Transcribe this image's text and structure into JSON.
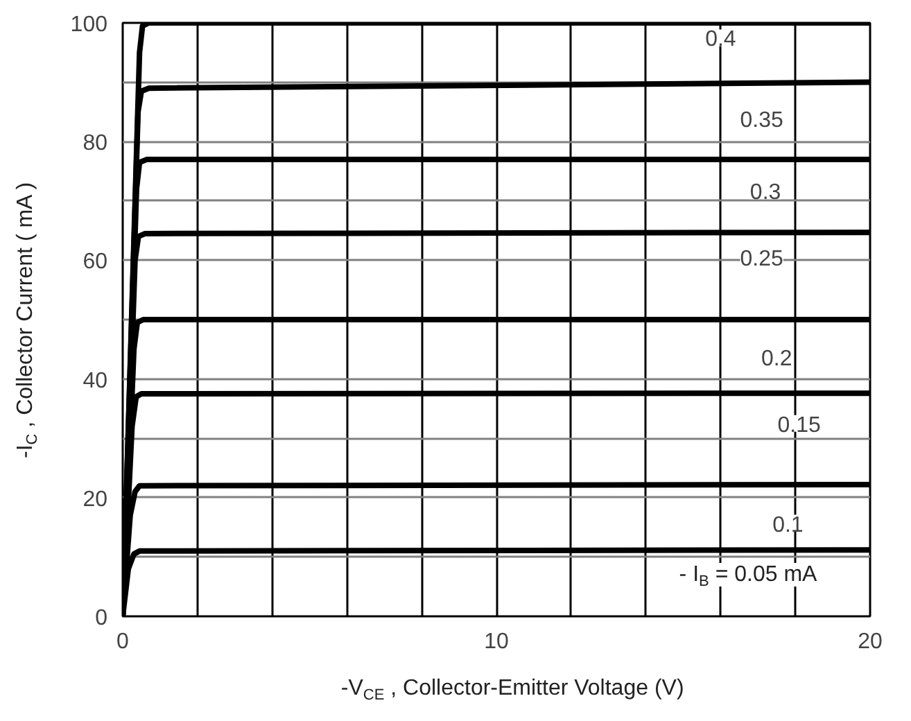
{
  "chart_data": {
    "type": "line",
    "xlabel": "-V$_{CE}$ , Collector-Emitter Voltage (V)",
    "ylabel": "-I$_{C}$ , Collector Current ( mA )",
    "xlim": [
      0,
      20
    ],
    "ylim": [
      0,
      100
    ],
    "xticks": [
      0,
      {
        "value": 2,
        "label": null
      },
      {
        "value": 4,
        "label": null
      },
      {
        "value": 6,
        "label": null
      },
      {
        "value": 8,
        "label": null
      },
      10,
      {
        "value": 12,
        "label": null
      },
      {
        "value": 14,
        "label": null
      },
      {
        "value": 16,
        "label": null
      },
      {
        "value": 18,
        "label": null
      },
      20
    ],
    "yticks": [
      0,
      {
        "value": 10,
        "label": null
      },
      20,
      {
        "value": 30,
        "label": null
      },
      40,
      {
        "value": 50,
        "label": null
      },
      60,
      {
        "value": 70,
        "label": null
      },
      80,
      {
        "value": 90,
        "label": null
      },
      100
    ],
    "grid": true,
    "marker": "none",
    "line_style": "solid",
    "series": [
      {
        "color": "#000000",
        "x": [
          0,
          0.15,
          0.3,
          0.45,
          20
        ],
        "values": [
          0,
          8,
          10.5,
          11,
          11.2
        ]
      },
      {
        "color": "#000000",
        "x": [
          0,
          0.2,
          0.33,
          0.45,
          20
        ],
        "values": [
          0,
          17,
          21,
          22,
          22.2
        ]
      },
      {
        "color": "#000000",
        "x": [
          0,
          0.25,
          0.36,
          0.5,
          20
        ],
        "values": [
          0,
          32,
          37,
          37.5,
          37.6
        ]
      },
      {
        "color": "#000000",
        "x": [
          0,
          0.3,
          0.39,
          0.55,
          20
        ],
        "values": [
          0,
          45,
          49.5,
          50,
          50
        ]
      },
      {
        "color": "#000000",
        "x": [
          0,
          0.33,
          0.42,
          0.6,
          20
        ],
        "values": [
          0,
          60,
          64,
          64.5,
          64.7
        ]
      },
      {
        "color": "#000000",
        "x": [
          0,
          0.37,
          0.45,
          0.65,
          20
        ],
        "values": [
          0,
          72,
          76.5,
          77,
          77
        ]
      },
      {
        "color": "#000000",
        "x": [
          0,
          0.41,
          0.5,
          0.7,
          20
        ],
        "values": [
          0,
          85,
          88.5,
          89,
          90
        ]
      },
      {
        "color": "#000000",
        "x": [
          0,
          0.45,
          0.53,
          0.7,
          20
        ],
        "values": [
          0,
          95,
          99.5,
          100,
          100
        ]
      }
    ],
    "annotations": [
      {
        "text": "0.4",
        "x": 16.0,
        "y": 97.5
      },
      {
        "text": "0.35",
        "x": 17.1,
        "y": 83.9
      },
      {
        "text": "0.3",
        "x": 17.2,
        "y": 71.7
      },
      {
        "text": "0.25",
        "x": 17.1,
        "y": 60.5
      },
      {
        "text": "0.2",
        "x": 17.5,
        "y": 43.7
      },
      {
        "text": "0.15",
        "x": 18.1,
        "y": 32.5
      },
      {
        "text": "0.1",
        "x": 17.8,
        "y": 15.7
      },
      "- I$_{B}$ = 0.05 mA"
    ]
  }
}
